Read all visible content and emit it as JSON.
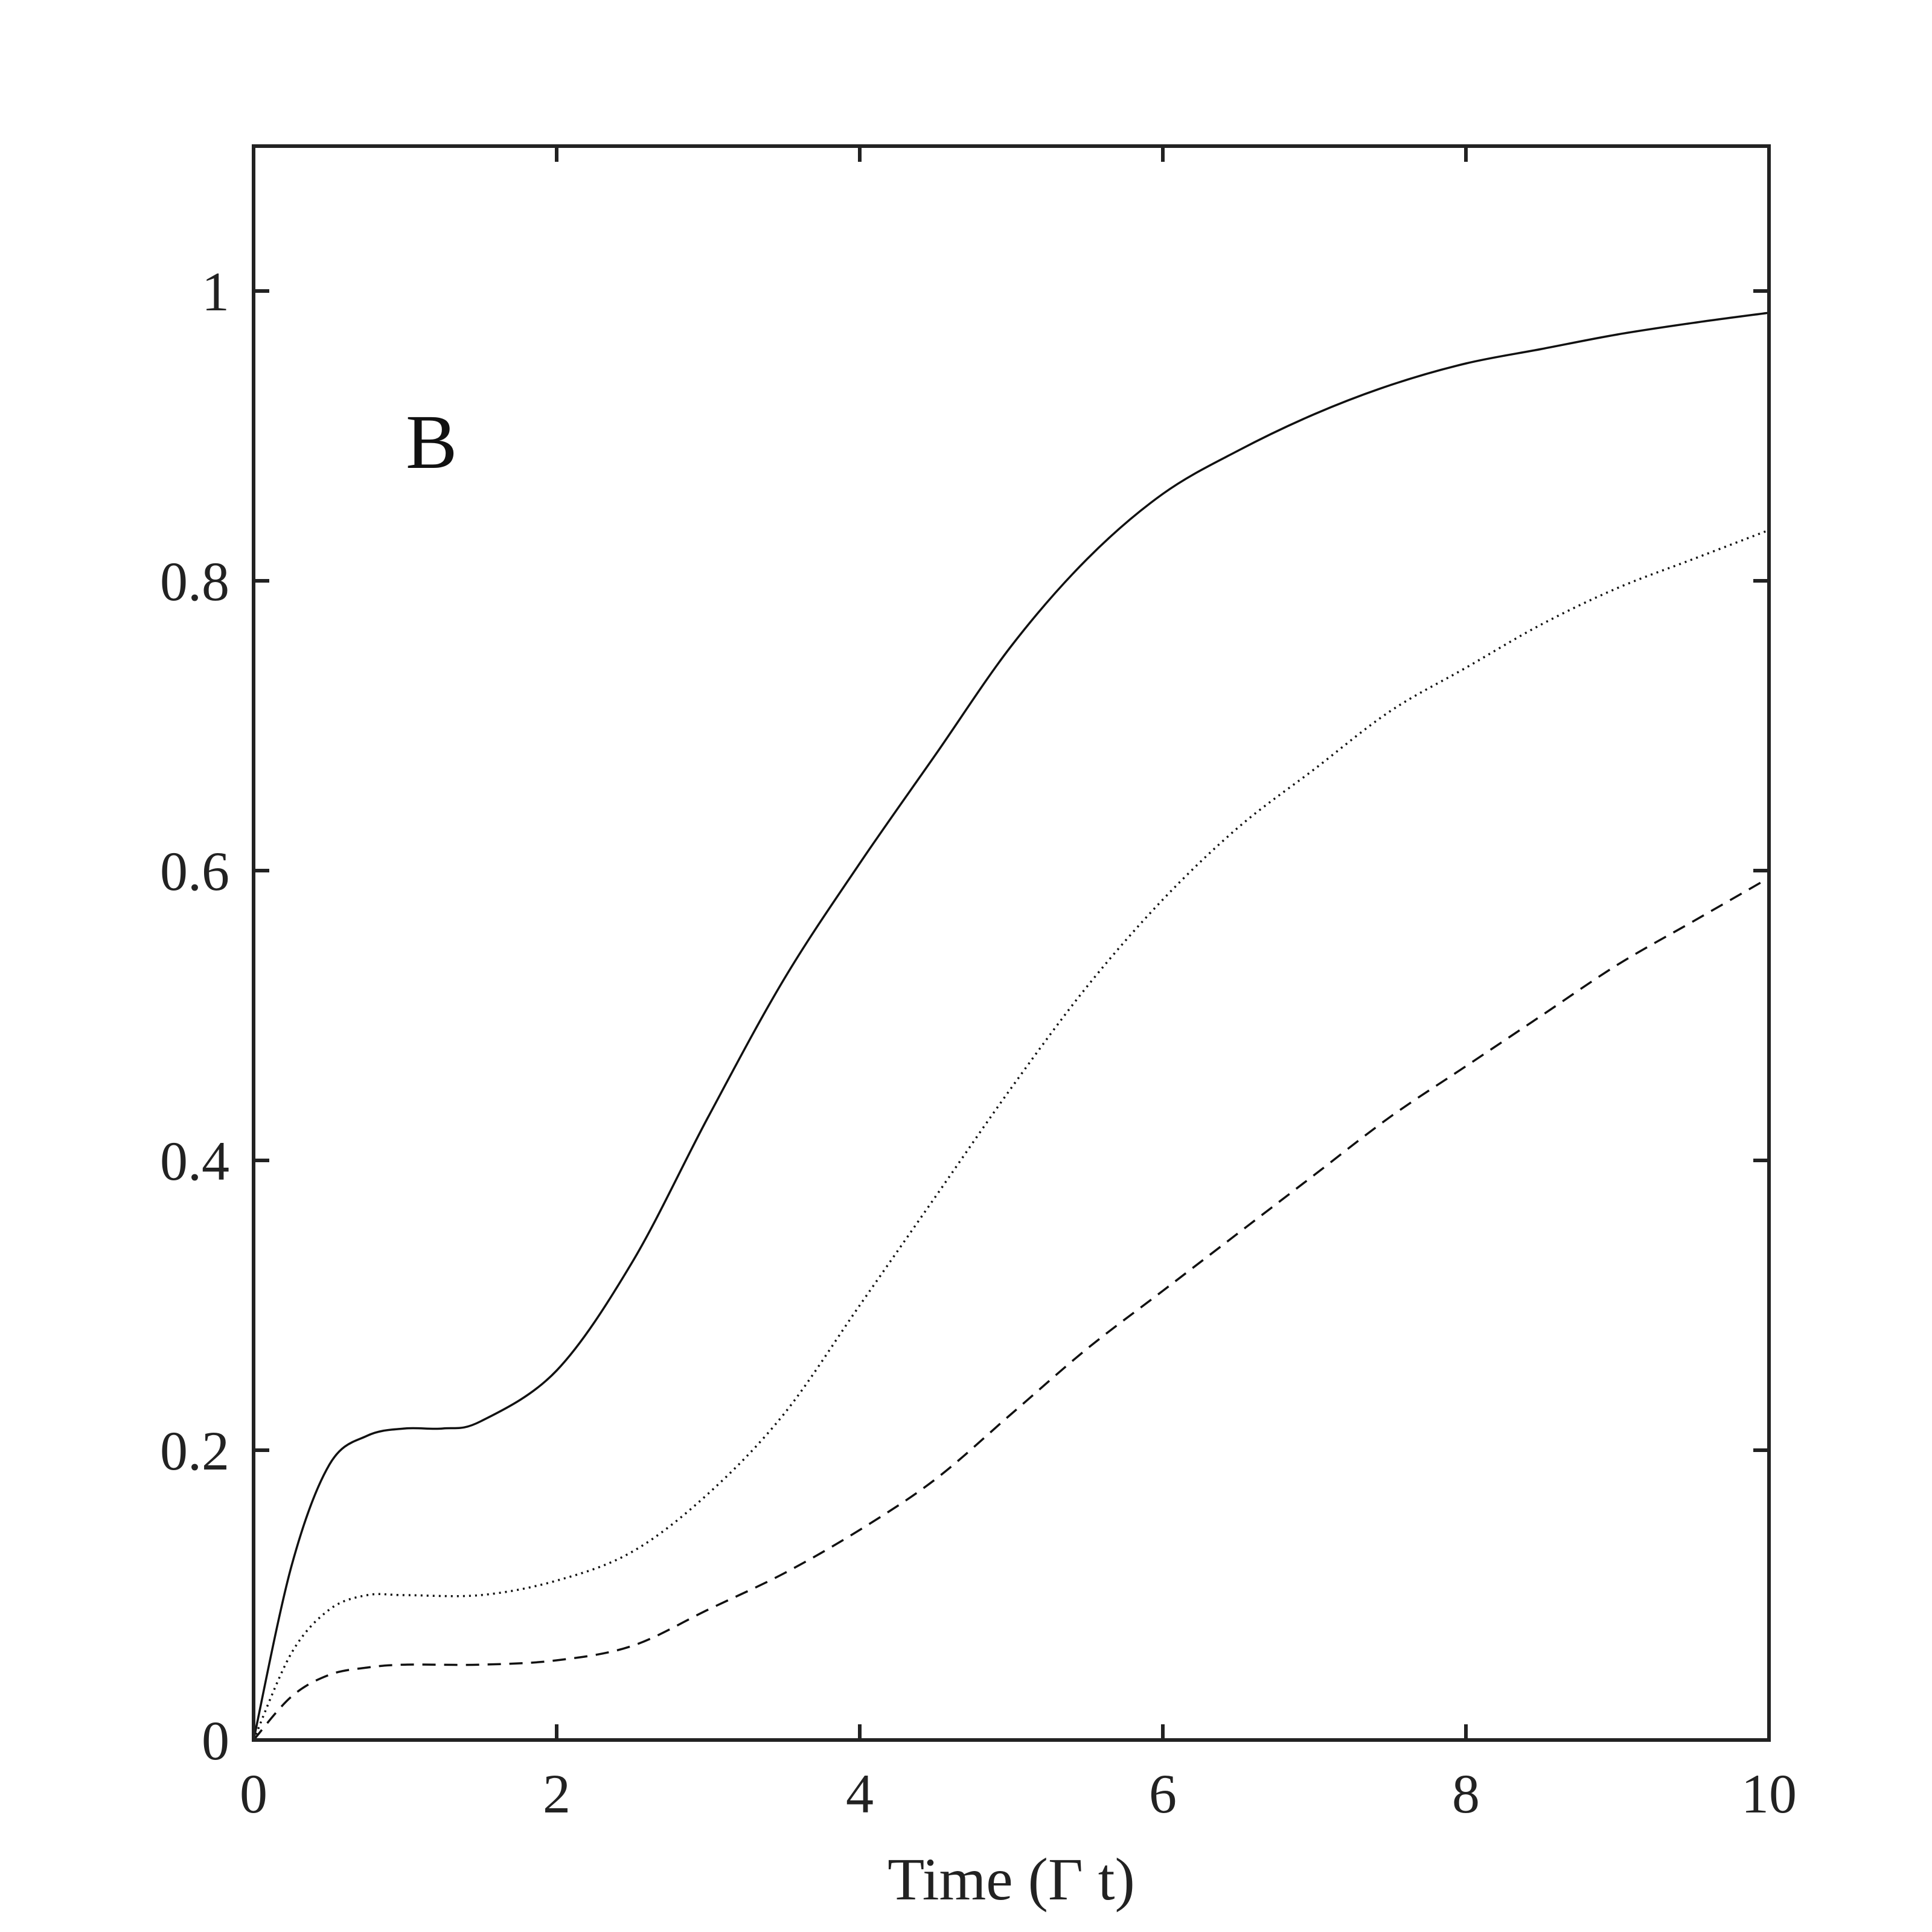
{
  "chart_data": {
    "type": "line",
    "panel_label": "B",
    "title": "",
    "xlabel": "Time (Γ t)",
    "ylabel": "",
    "xlim": [
      0,
      10
    ],
    "ylim": [
      0,
      1.1
    ],
    "xticks": [
      0,
      2,
      4,
      6,
      8,
      10
    ],
    "yticks": [
      0,
      0.2,
      0.4,
      0.6,
      0.8,
      1
    ],
    "xtick_labels": [
      "0",
      "2",
      "4",
      "6",
      "8",
      "10"
    ],
    "ytick_labels": [
      "0",
      "0.2",
      "0.4",
      "0.6",
      "0.8",
      "1"
    ],
    "grid": false,
    "line_color": "#111111",
    "series": [
      {
        "style": "solid",
        "x": [
          0,
          0.25,
          0.5,
          0.75,
          1,
          1.25,
          1.5,
          2,
          2.5,
          3,
          3.5,
          4,
          4.5,
          5,
          5.5,
          6,
          6.5,
          7,
          7.5,
          8,
          8.5,
          9,
          9.5,
          10
        ],
        "y": [
          0,
          0.12,
          0.19,
          0.21,
          0.215,
          0.215,
          0.22,
          0.255,
          0.33,
          0.43,
          0.525,
          0.605,
          0.68,
          0.755,
          0.815,
          0.86,
          0.89,
          0.915,
          0.935,
          0.95,
          0.96,
          0.97,
          0.978,
          0.985
        ]
      },
      {
        "style": "dotted",
        "x": [
          0,
          0.25,
          0.5,
          0.75,
          1,
          1.5,
          2,
          2.5,
          3,
          3.5,
          4,
          4.5,
          5,
          5.5,
          6,
          6.5,
          7,
          7.5,
          8,
          8.5,
          9,
          9.5,
          10
        ],
        "y": [
          0,
          0.06,
          0.09,
          0.1,
          0.1,
          0.1,
          0.11,
          0.13,
          0.17,
          0.225,
          0.3,
          0.375,
          0.45,
          0.52,
          0.58,
          0.63,
          0.67,
          0.71,
          0.74,
          0.77,
          0.795,
          0.815,
          0.835
        ]
      },
      {
        "style": "dashed",
        "x": [
          0,
          0.25,
          0.5,
          0.75,
          1,
          1.5,
          2,
          2.5,
          3,
          3.5,
          4,
          4.5,
          5,
          5.5,
          6,
          6.5,
          7,
          7.5,
          8,
          8.5,
          9,
          9.5,
          10
        ],
        "y": [
          0,
          0.03,
          0.045,
          0.05,
          0.052,
          0.052,
          0.055,
          0.065,
          0.09,
          0.115,
          0.145,
          0.18,
          0.225,
          0.27,
          0.31,
          0.35,
          0.39,
          0.43,
          0.465,
          0.5,
          0.535,
          0.565,
          0.595
        ]
      }
    ]
  }
}
